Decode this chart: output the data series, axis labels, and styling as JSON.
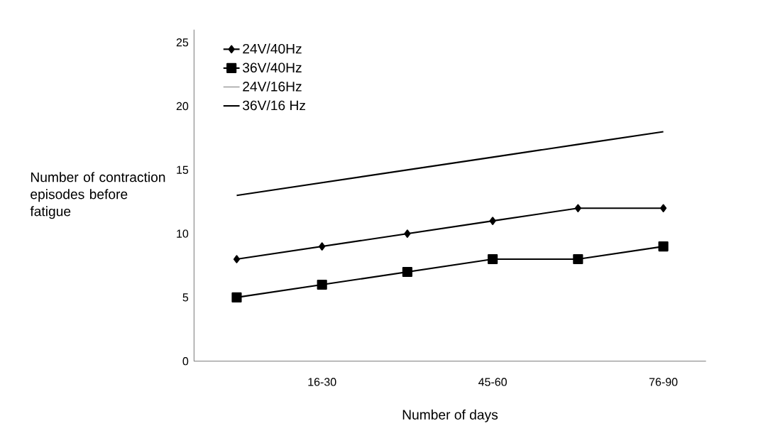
{
  "chart_data": {
    "type": "line",
    "xlabel": "Number of days",
    "ylabel": "Number of contraction episodes before fatigue",
    "categories": [
      null,
      "16-30",
      null,
      "45-60",
      null,
      "76-90"
    ],
    "ylim": [
      0,
      26
    ],
    "yticks": [
      0,
      5,
      10,
      15,
      20,
      25
    ],
    "legend": "top left",
    "grid": false,
    "series": [
      {
        "name": "24V/40Hz",
        "color": "#000000",
        "marker": "diamond",
        "values": [
          8,
          9,
          10,
          11,
          12,
          12
        ]
      },
      {
        "name": "36V/40Hz",
        "color": "#000000",
        "marker": "square",
        "values": [
          5,
          6,
          7,
          8,
          8,
          9
        ]
      },
      {
        "name": "24V/16Hz",
        "marker": "none",
        "values": [
          null,
          null,
          null,
          null,
          null,
          null
        ]
      },
      {
        "name": "36V/16 Hz",
        "color": "#000000",
        "marker": "none",
        "values": [
          13,
          14,
          15,
          16,
          17,
          18
        ]
      }
    ]
  }
}
